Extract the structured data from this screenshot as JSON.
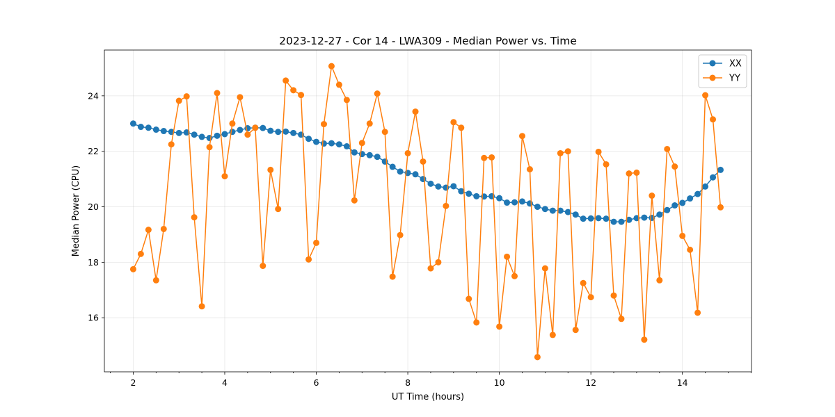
{
  "chart_data": {
    "type": "line",
    "title": "2023-12-27 - Cor 14 - LWA309 - Median Power vs. Time",
    "xlabel": "UT Time (hours)",
    "ylabel": "Median Power (CPU)",
    "xlim": [
      1.37,
      15.51
    ],
    "ylim": [
      14.05,
      25.65
    ],
    "x_ticks": [
      2,
      4,
      6,
      8,
      10,
      12,
      14
    ],
    "x_tick_labels": [
      "2",
      "4",
      "6",
      "8",
      "10",
      "12",
      "14"
    ],
    "y_ticks": [
      16,
      18,
      20,
      22,
      24
    ],
    "y_tick_labels": [
      "16",
      "18",
      "20",
      "22",
      "24"
    ],
    "grid": true,
    "legend_position": "top-right",
    "x": [
      2.0,
      2.1667,
      2.3333,
      2.5,
      2.6667,
      2.8333,
      3.0,
      3.1667,
      3.3333,
      3.5,
      3.6667,
      3.8333,
      4.0,
      4.1667,
      4.3333,
      4.5,
      4.6667,
      4.8333,
      5.0,
      5.1667,
      5.3333,
      5.5,
      5.6667,
      5.8333,
      6.0,
      6.1667,
      6.3333,
      6.5,
      6.6667,
      6.8333,
      7.0,
      7.1667,
      7.3333,
      7.5,
      7.6667,
      7.8333,
      8.0,
      8.1667,
      8.3333,
      8.5,
      8.6667,
      8.8333,
      9.0,
      9.1667,
      9.3333,
      9.5,
      9.6667,
      9.8333,
      10.0,
      10.1667,
      10.3333,
      10.5,
      10.6667,
      10.8333,
      11.0,
      11.1667,
      11.3333,
      11.5,
      11.6667,
      11.8333,
      12.0,
      12.1667,
      12.3333,
      12.5,
      12.6667,
      12.8333,
      13.0,
      13.1667,
      13.3333,
      13.5,
      13.6667,
      13.8333,
      14.0,
      14.1667,
      14.3333,
      14.5,
      14.6667,
      14.8333
    ],
    "series": [
      {
        "name": "XX",
        "color": "#1f77b4",
        "values": [
          23.0,
          22.88,
          22.85,
          22.78,
          22.73,
          22.7,
          22.66,
          22.68,
          22.6,
          22.52,
          22.48,
          22.56,
          22.62,
          22.7,
          22.77,
          22.83,
          22.85,
          22.84,
          22.74,
          22.7,
          22.71,
          22.66,
          22.6,
          22.45,
          22.34,
          22.28,
          22.29,
          22.25,
          22.18,
          21.96,
          21.9,
          21.86,
          21.8,
          21.63,
          21.44,
          21.27,
          21.22,
          21.17,
          21.0,
          20.83,
          20.73,
          20.69,
          20.74,
          20.56,
          20.47,
          20.38,
          20.37,
          20.38,
          20.31,
          20.15,
          20.16,
          20.19,
          20.12,
          20.0,
          19.92,
          19.86,
          19.86,
          19.81,
          19.72,
          19.57,
          19.58,
          19.59,
          19.57,
          19.46,
          19.46,
          19.53,
          19.59,
          19.61,
          19.6,
          19.72,
          19.88,
          20.05,
          20.14,
          20.3,
          20.46,
          20.73,
          21.06,
          21.33
        ]
      },
      {
        "name": "YY",
        "color": "#ff7f0e",
        "values": [
          17.75,
          18.3,
          19.17,
          17.35,
          19.2,
          22.25,
          23.82,
          23.98,
          19.62,
          16.41,
          22.15,
          24.1,
          21.1,
          23.0,
          23.95,
          22.6,
          22.85,
          17.87,
          21.33,
          19.92,
          24.55,
          24.2,
          24.03,
          18.1,
          18.7,
          22.98,
          25.07,
          24.4,
          23.85,
          20.23,
          22.3,
          23.0,
          24.08,
          22.7,
          17.48,
          18.98,
          21.93,
          23.43,
          21.63,
          17.78,
          18.0,
          20.03,
          23.05,
          22.85,
          16.68,
          15.83,
          21.76,
          21.78,
          15.68,
          18.2,
          17.5,
          22.55,
          21.35,
          14.58,
          17.78,
          15.38,
          21.93,
          22.0,
          15.56,
          17.25,
          16.74,
          21.98,
          21.53,
          16.8,
          15.96,
          21.2,
          21.23,
          15.21,
          20.4,
          17.35,
          22.08,
          21.45,
          18.95,
          18.45,
          16.18,
          24.02,
          23.15,
          19.98
        ]
      }
    ]
  }
}
